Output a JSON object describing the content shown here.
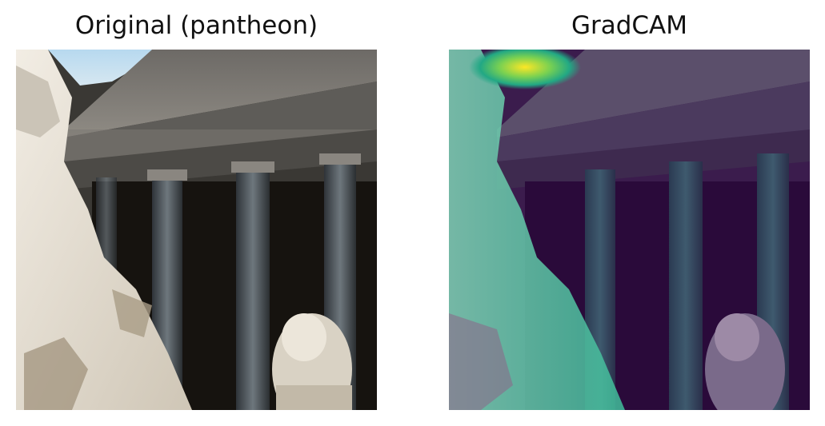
{
  "panels": [
    {
      "title": "Original (pantheon)",
      "kind": "original-image"
    },
    {
      "title": "GradCAM",
      "kind": "gradcam-overlay"
    }
  ],
  "colors": {
    "background": "#ffffff",
    "title_text": "#111111",
    "sky": "#a9cde6",
    "stone_light": "#e9e2d6",
    "stone_mid": "#8a8782",
    "shadow": "#1a1714",
    "heatmap_low": "#440154",
    "heatmap_mid": "#3fbc9a",
    "heatmap_high": "#fde725"
  }
}
